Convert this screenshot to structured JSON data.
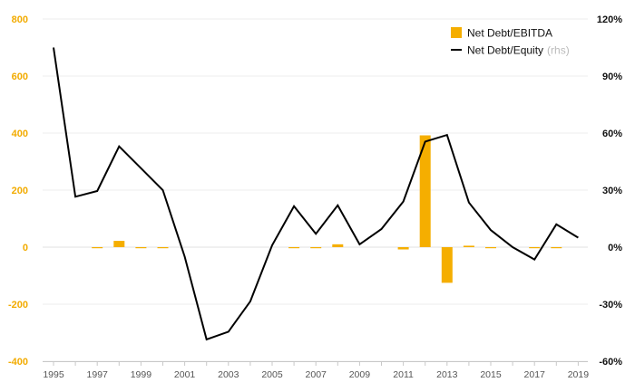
{
  "chart_data": {
    "type": "bar+line",
    "x": [
      "1995",
      "1996",
      "1997",
      "1998",
      "1999",
      "2000",
      "2001",
      "2002",
      "2003",
      "2004",
      "2005",
      "2006",
      "2007",
      "2008",
      "2009",
      "2010",
      "2011",
      "2012",
      "2013",
      "2014",
      "2015",
      "2016",
      "2017",
      "2018",
      "2019"
    ],
    "x_tick_labels": [
      "1995",
      "1997",
      "1999",
      "2001",
      "2003",
      "2005",
      "2007",
      "2009",
      "2011",
      "2013",
      "2015",
      "2017",
      "2019"
    ],
    "series": [
      {
        "name": "Net Debt/EBITDA",
        "type": "bar",
        "axis": "left",
        "color": "#f5ae00",
        "values": [
          0,
          0,
          -2,
          22,
          -3,
          -3,
          0,
          0,
          0,
          0,
          0,
          -3,
          -3,
          10,
          0,
          0,
          -8,
          392,
          -125,
          5,
          -3,
          0,
          -3,
          -3,
          0
        ]
      },
      {
        "name": "Net Debt/Equity",
        "name_note": "(rhs)",
        "type": "line",
        "axis": "right",
        "color": "#000000",
        "values": [
          105,
          26.5,
          29.5,
          53,
          41.5,
          30,
          -5,
          -48.5,
          -44.5,
          -28.5,
          1,
          21.5,
          7,
          22,
          1.5,
          9.5,
          24,
          55.5,
          59,
          23.5,
          9,
          0,
          -6.5,
          12,
          5
        ]
      }
    ],
    "y_left": {
      "lim": [
        -400,
        800
      ],
      "ticks": [
        "-400",
        "-200",
        "0",
        "200",
        "400",
        "600",
        "800"
      ],
      "tick_values": [
        -400,
        -200,
        0,
        200,
        400,
        600,
        800
      ],
      "tick_color": "#f2ab00"
    },
    "y_right": {
      "lim": [
        -60,
        120
      ],
      "ticks": [
        "-60%",
        "-30%",
        "0%",
        "30%",
        "60%",
        "90%",
        "120%"
      ],
      "tick_values": [
        -60,
        -30,
        0,
        30,
        60,
        90,
        120
      ],
      "unit": "%"
    },
    "grid": true,
    "legend_position": "top-right"
  }
}
